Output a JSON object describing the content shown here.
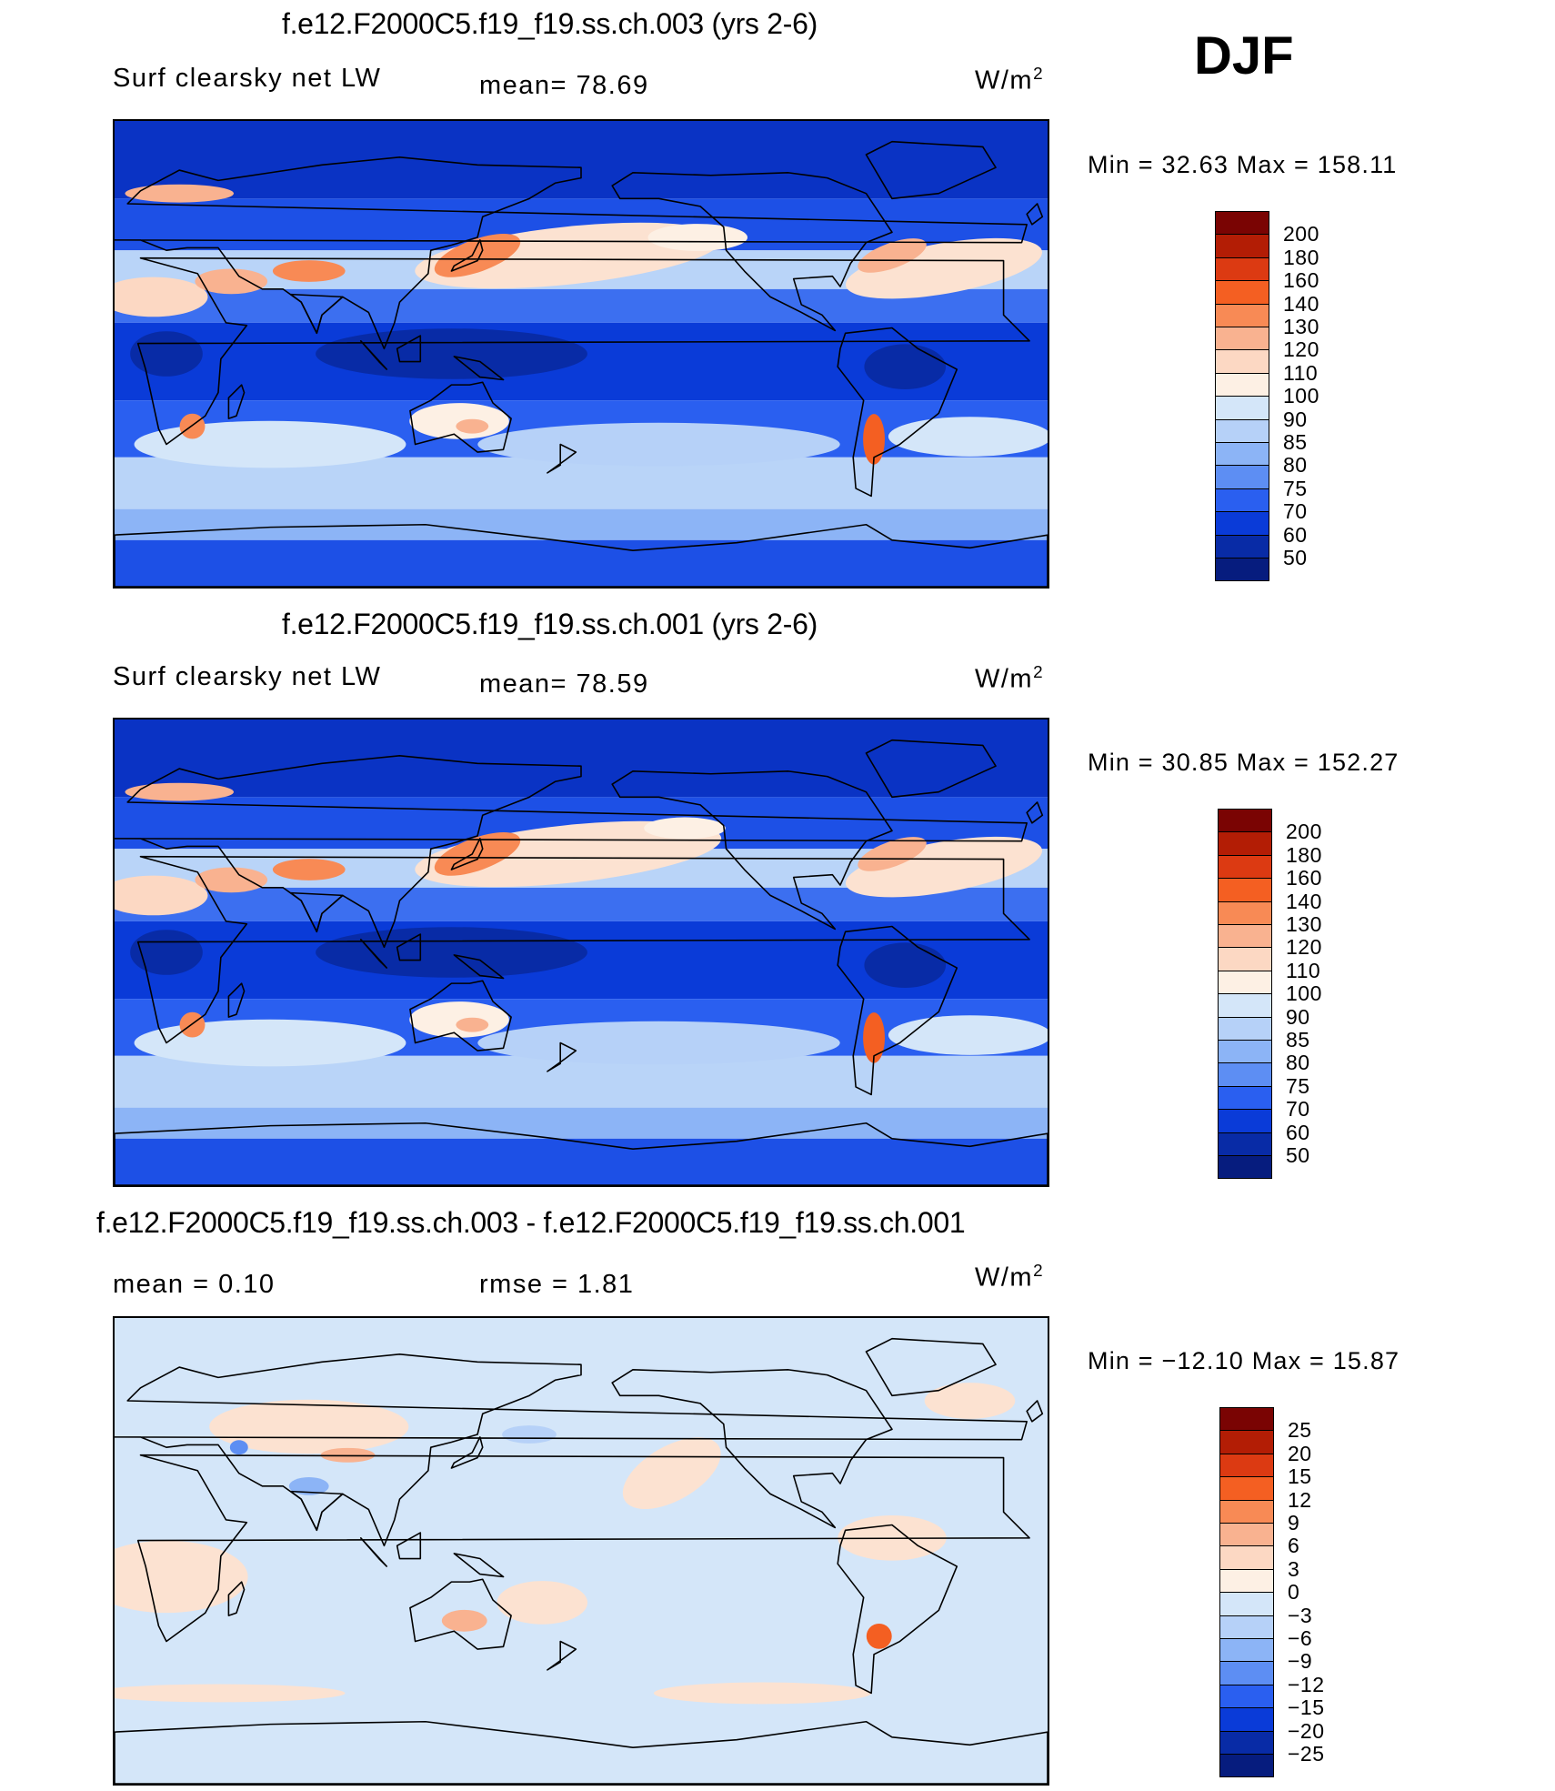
{
  "season": "DJF",
  "panels": [
    {
      "title": "f.e12.F2000C5.f19_f19.ss.ch.003 (yrs 2-6)",
      "left_label": "Surf clearsky net LW",
      "mid_label": "mean=   78.69",
      "units_base": "W/m",
      "units_exp": "2",
      "stats": "Min =   32.63 Max =  158.11",
      "colorbar": {
        "labels": [
          "200",
          "180",
          "160",
          "140",
          "130",
          "120",
          "110",
          "100",
          "90",
          "85",
          "80",
          "75",
          "70",
          "60",
          "50"
        ],
        "colors": [
          "#7a0403",
          "#b31d05",
          "#dc3a12",
          "#f45f22",
          "#f88a55",
          "#f9b290",
          "#fcd8c3",
          "#fdf0e4",
          "#d4e6f9",
          "#b6d1f8",
          "#8cb4f6",
          "#5d8ef3",
          "#2a5ff0",
          "#0a3bd8",
          "#082ba6",
          "#061c7e"
        ]
      },
      "map_mode": "field"
    },
    {
      "title": "f.e12.F2000C5.f19_f19.ss.ch.001 (yrs 2-6)",
      "left_label": "Surf clearsky net LW",
      "mid_label": "mean=   78.59",
      "units_base": "W/m",
      "units_exp": "2",
      "stats": "Min =   30.85 Max =  152.27",
      "colorbar": {
        "labels": [
          "200",
          "180",
          "160",
          "140",
          "130",
          "120",
          "110",
          "100",
          "90",
          "85",
          "80",
          "75",
          "70",
          "60",
          "50"
        ],
        "colors": [
          "#7a0403",
          "#b31d05",
          "#dc3a12",
          "#f45f22",
          "#f88a55",
          "#f9b290",
          "#fcd8c3",
          "#fdf0e4",
          "#d4e6f9",
          "#b6d1f8",
          "#8cb4f6",
          "#5d8ef3",
          "#2a5ff0",
          "#0a3bd8",
          "#082ba6",
          "#061c7e"
        ]
      },
      "map_mode": "field"
    },
    {
      "title": "f.e12.F2000C5.f19_f19.ss.ch.003 - f.e12.F2000C5.f19_f19.ss.ch.001",
      "left_label": "mean =    0.10",
      "mid_label": "rmse =     1.81",
      "units_base": "W/m",
      "units_exp": "2",
      "stats": "Min = −12.10 Max =   15.87",
      "colorbar": {
        "labels": [
          "25",
          "20",
          "15",
          "12",
          "9",
          "6",
          "3",
          "0",
          "−3",
          "−6",
          "−9",
          "−12",
          "−15",
          "−20",
          "−25"
        ],
        "colors": [
          "#7a0403",
          "#b31d05",
          "#dc3a12",
          "#f45f22",
          "#f88a55",
          "#f9b290",
          "#fcd8c3",
          "#fdf0e4",
          "#d4e6f9",
          "#b6d1f8",
          "#8cb4f6",
          "#5d8ef3",
          "#2a5ff0",
          "#0a3bd8",
          "#082ba6",
          "#061c7e"
        ]
      },
      "map_mode": "diff"
    }
  ]
}
